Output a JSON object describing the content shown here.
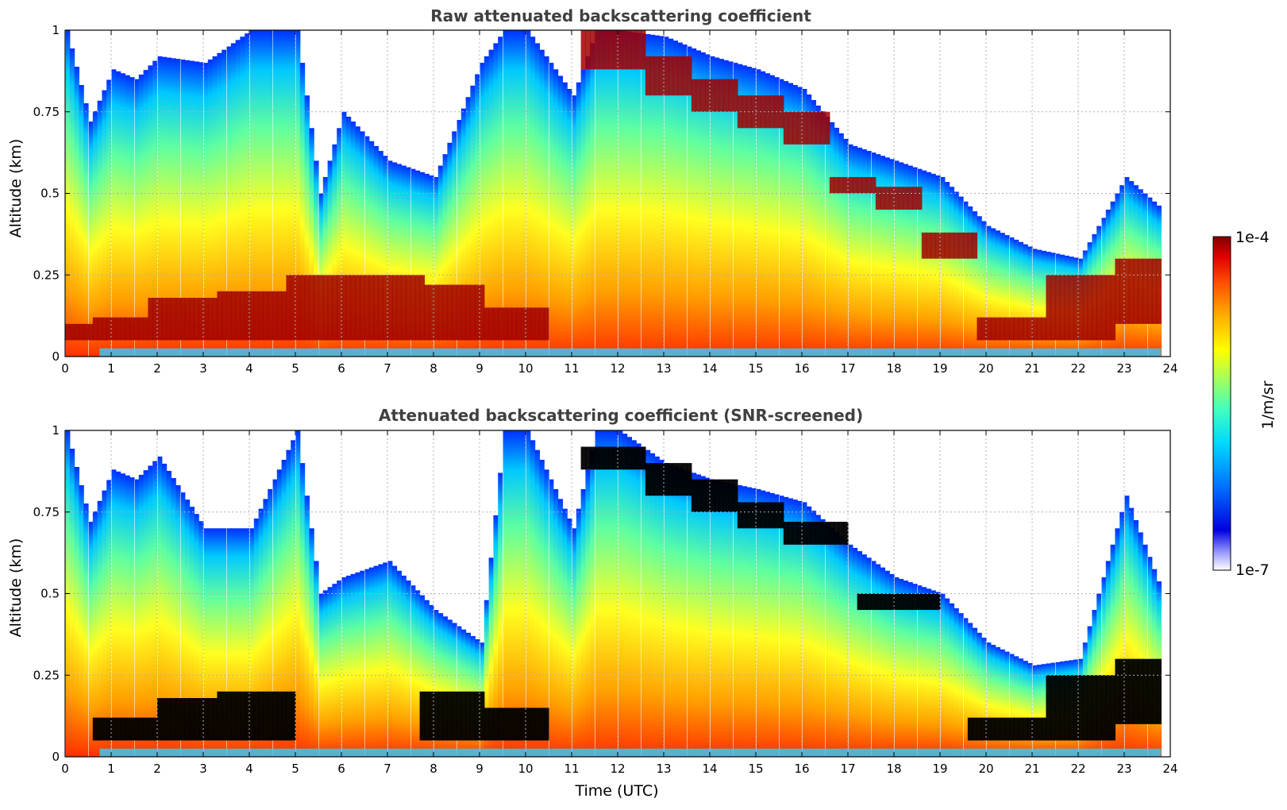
{
  "chart_data": [
    {
      "type": "heatmap",
      "title": "Raw attenuated backscattering coefficient",
      "xlabel": "",
      "ylabel": "Altitude (km)",
      "xlim": [
        0,
        24
      ],
      "ylim": [
        0,
        1
      ],
      "x_ticks": [
        "0",
        "1",
        "2",
        "3",
        "4",
        "5",
        "6",
        "7",
        "8",
        "9",
        "10",
        "11",
        "12",
        "13",
        "14",
        "15",
        "16",
        "17",
        "18",
        "19",
        "20",
        "21",
        "22",
        "23",
        "24"
      ],
      "y_ticks": [
        "0",
        "0.25",
        "0.5",
        "0.75",
        "1"
      ],
      "grid": true,
      "cloud_top_km": [
        [
          0,
          1.0
        ],
        [
          0.5,
          0.72
        ],
        [
          1.0,
          0.88
        ],
        [
          1.5,
          0.85
        ],
        [
          2.0,
          0.92
        ],
        [
          3.0,
          0.9
        ],
        [
          4.0,
          1.0
        ],
        [
          5.0,
          1.0
        ],
        [
          5.5,
          0.5
        ],
        [
          6.0,
          0.75
        ],
        [
          7.0,
          0.6
        ],
        [
          8.0,
          0.55
        ],
        [
          9.0,
          0.9
        ],
        [
          9.5,
          1.0
        ],
        [
          10.0,
          1.0
        ],
        [
          11.0,
          0.8
        ],
        [
          11.5,
          1.0
        ],
        [
          12.0,
          1.0
        ],
        [
          13.0,
          0.98
        ],
        [
          14.0,
          0.92
        ],
        [
          15.0,
          0.88
        ],
        [
          16.0,
          0.82
        ],
        [
          17.0,
          0.65
        ],
        [
          18.0,
          0.6
        ],
        [
          19.0,
          0.55
        ],
        [
          20.0,
          0.4
        ],
        [
          21.0,
          0.33
        ],
        [
          22.0,
          0.3
        ],
        [
          23.0,
          0.55
        ],
        [
          23.8,
          0.45
        ]
      ],
      "dense_layer_km": [
        [
          0,
          0.05,
          0.1
        ],
        [
          1.0,
          0.05,
          0.12
        ],
        [
          2.5,
          0.05,
          0.18
        ],
        [
          4.0,
          0.05,
          0.2
        ],
        [
          5.5,
          0.05,
          0.25
        ],
        [
          7.0,
          0.05,
          0.25
        ],
        [
          8.5,
          0.05,
          0.22
        ],
        [
          9.5,
          0.05,
          0.15
        ],
        [
          12.0,
          0.88,
          1.0
        ],
        [
          13.0,
          0.8,
          0.92
        ],
        [
          14.0,
          0.75,
          0.85
        ],
        [
          15.0,
          0.7,
          0.8
        ],
        [
          16.0,
          0.65,
          0.75
        ],
        [
          17.0,
          0.5,
          0.55
        ],
        [
          18.0,
          0.45,
          0.52
        ],
        [
          19.0,
          0.3,
          0.38
        ],
        [
          20.5,
          0.05,
          0.12
        ],
        [
          22.0,
          0.05,
          0.25
        ],
        [
          23.5,
          0.1,
          0.3
        ]
      ]
    },
    {
      "type": "heatmap",
      "title": "Attenuated backscattering coefficient (SNR-screened)",
      "xlabel": "Time (UTC)",
      "ylabel": "Altitude (km)",
      "xlim": [
        0,
        24
      ],
      "ylim": [
        0,
        1
      ],
      "x_ticks": [
        "0",
        "1",
        "2",
        "3",
        "4",
        "5",
        "6",
        "7",
        "8",
        "9",
        "10",
        "11",
        "12",
        "13",
        "14",
        "15",
        "16",
        "17",
        "18",
        "19",
        "20",
        "21",
        "22",
        "23",
        "24"
      ],
      "y_ticks": [
        "0",
        "0.25",
        "0.5",
        "0.75",
        "1"
      ],
      "grid": true,
      "cloud_top_km": [
        [
          0,
          1.0
        ],
        [
          0.5,
          0.72
        ],
        [
          1.0,
          0.88
        ],
        [
          1.5,
          0.85
        ],
        [
          2.0,
          0.92
        ],
        [
          3.0,
          0.7
        ],
        [
          4.0,
          0.7
        ],
        [
          5.0,
          1.0
        ],
        [
          5.5,
          0.5
        ],
        [
          6.0,
          0.55
        ],
        [
          7.0,
          0.6
        ],
        [
          8.0,
          0.45
        ],
        [
          9.0,
          0.35
        ],
        [
          9.5,
          1.0
        ],
        [
          10.0,
          1.0
        ],
        [
          11.0,
          0.7
        ],
        [
          11.5,
          1.0
        ],
        [
          12.0,
          1.0
        ],
        [
          13.0,
          0.9
        ],
        [
          14.0,
          0.85
        ],
        [
          15.0,
          0.82
        ],
        [
          16.0,
          0.78
        ],
        [
          17.0,
          0.65
        ],
        [
          18.0,
          0.55
        ],
        [
          19.0,
          0.5
        ],
        [
          20.0,
          0.35
        ],
        [
          21.0,
          0.28
        ],
        [
          22.0,
          0.3
        ],
        [
          23.0,
          0.8
        ],
        [
          23.8,
          0.5
        ]
      ],
      "saturated_layer_km": [
        [
          1.5,
          0.05,
          0.12
        ],
        [
          2.5,
          0.05,
          0.18
        ],
        [
          4.0,
          0.05,
          0.2
        ],
        [
          8.5,
          0.05,
          0.2
        ],
        [
          9.5,
          0.05,
          0.15
        ],
        [
          12.0,
          0.88,
          0.95
        ],
        [
          13.0,
          0.8,
          0.9
        ],
        [
          14.0,
          0.75,
          0.85
        ],
        [
          15.0,
          0.7,
          0.78
        ],
        [
          16.0,
          0.65,
          0.72
        ],
        [
          18.0,
          0.45,
          0.5
        ],
        [
          20.5,
          0.05,
          0.12
        ],
        [
          22.0,
          0.05,
          0.25
        ],
        [
          23.5,
          0.1,
          0.3
        ]
      ]
    }
  ],
  "colorbar": {
    "label": "1/m/sr",
    "max_label": "1e-4",
    "min_label": "1e-7",
    "scale": "log",
    "colormap": [
      "#0a0080",
      "#0000e0",
      "#0070ff",
      "#00d8ff",
      "#40ffc0",
      "#a0ff60",
      "#ffff00",
      "#ffb000",
      "#ff5000",
      "#e00000",
      "#800000"
    ]
  }
}
